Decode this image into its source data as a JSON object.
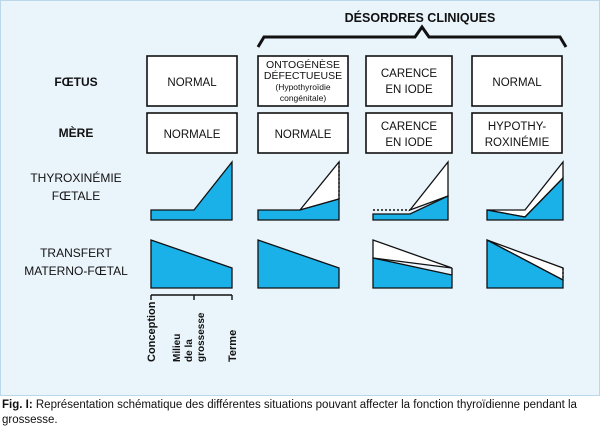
{
  "header": {
    "title": "DÉSORDRES CLINIQUES"
  },
  "rows": {
    "foetus": "FŒTUS",
    "mere": "MÈRE",
    "thyroxinemie": [
      "THYROXINÉMIE",
      "FŒTALE"
    ],
    "transfert": [
      "TRANSFERT",
      "MATERNO-FŒTAL"
    ]
  },
  "columns": [
    {
      "foetus": [
        "NORMAL"
      ],
      "mere": [
        "NORMALE"
      ]
    },
    {
      "foetus": [
        "ONTOGÉNÈSE",
        "DÉFECTUEUSE"
      ],
      "foetus_sub": [
        "(Hypothyroïdie",
        "congénitale)"
      ],
      "mere": [
        "NORMALE"
      ]
    },
    {
      "foetus": [
        "CARENCE",
        "EN IODE"
      ],
      "mere": [
        "CARENCE",
        "EN IODE"
      ]
    },
    {
      "foetus": [
        "NORMAL"
      ],
      "mere": [
        "HYPOTHY-",
        "ROXINÉMIE"
      ]
    }
  ],
  "timeline": {
    "conception": "Conception",
    "milieu": [
      "Milieu",
      "de la",
      "grossesse"
    ],
    "terme": "Terme"
  },
  "caption": {
    "label": "Fig. I:",
    "text": "Représentation schématique des différentes situations pouvant affecter la fonction thyroïdienne pendant la grossesse."
  },
  "colors": {
    "fill": "#1ab0e8",
    "background": "#eaf4fb"
  }
}
